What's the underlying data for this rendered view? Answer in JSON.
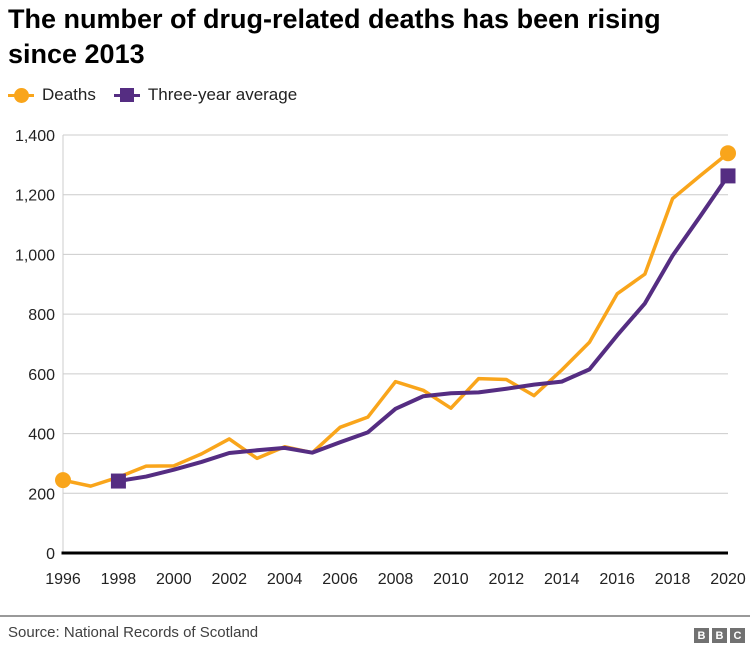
{
  "title": {
    "line1": "The number of drug-related deaths has been rising",
    "line2": "since 2013"
  },
  "legend": {
    "items": [
      {
        "label": "Deaths"
      },
      {
        "label": "Three-year average"
      }
    ]
  },
  "footer": {
    "source": "Source: National Records of Scotland",
    "logo": [
      "B",
      "B",
      "C"
    ]
  },
  "colors": {
    "deaths": "#F9A51B",
    "average": "#552D82",
    "grid": "#CCCCCC",
    "axis": "#000000",
    "tick_text": "#222222",
    "source_text": "#404040",
    "logo_bg": "#717171"
  },
  "chart_data": {
    "type": "line",
    "title": "The number of drug-related deaths has been rising since 2013",
    "x": [
      1996,
      1997,
      1998,
      1999,
      2000,
      2001,
      2002,
      2003,
      2004,
      2005,
      2006,
      2007,
      2008,
      2009,
      2010,
      2011,
      2012,
      2013,
      2014,
      2015,
      2016,
      2017,
      2018,
      2019,
      2020
    ],
    "series": [
      {
        "name": "Deaths",
        "color_key": "deaths",
        "marker": "circle",
        "line_width": 3.5,
        "x_start": 1996,
        "values": [
          244,
          224,
          254,
          291,
          292,
          332,
          382,
          317,
          356,
          336,
          421,
          455,
          574,
          545,
          485,
          584,
          581,
          527,
          613,
          706,
          868,
          934,
          1187,
          1264,
          1339
        ]
      },
      {
        "name": "Three-year average",
        "color_key": "average",
        "marker": "square",
        "line_width": 4,
        "x_start": 1998,
        "values": [
          241,
          256,
          279,
          305,
          335,
          344,
          352,
          336,
          371,
          404,
          483,
          525,
          535,
          538,
          550,
          564,
          574,
          615,
          729,
          836,
          996,
          1128,
          1263
        ]
      }
    ],
    "xticks": [
      1996,
      1998,
      2000,
      2002,
      2004,
      2006,
      2008,
      2010,
      2012,
      2014,
      2016,
      2018,
      2020
    ],
    "yticks": [
      {
        "v": 0,
        "label": "0"
      },
      {
        "v": 200,
        "label": "200"
      },
      {
        "v": 400,
        "label": "400"
      },
      {
        "v": 600,
        "label": "600"
      },
      {
        "v": 800,
        "label": "800"
      },
      {
        "v": 1000,
        "label": "1,000"
      },
      {
        "v": 1200,
        "label": "1,200"
      },
      {
        "v": 1400,
        "label": "1,400"
      }
    ],
    "ylim": [
      0,
      1400
    ],
    "grid": "horizontal",
    "legend_position": "top-left",
    "xlabel": "",
    "ylabel": ""
  }
}
